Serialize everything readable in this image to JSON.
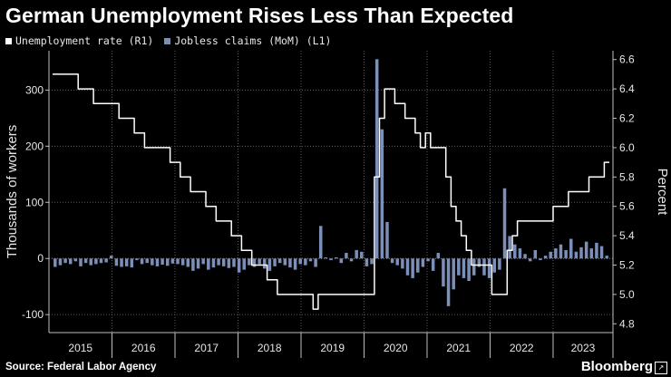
{
  "title": "German Unemployment Rises Less Than Expected",
  "legend": [
    {
      "label": "Unemployment rate (R1)",
      "color": "#ffffff"
    },
    {
      "label": "Jobless claims (MoM) (L1)",
      "color": "#7b8fb8"
    }
  ],
  "source": "Source: Federal Labor Agency",
  "brand": "Bloomberg",
  "brand_icon": "bloomberg-logo-icon",
  "chart_data": {
    "type": "bar+line",
    "ylabel_left": "Thousands of workers",
    "ylabel_right": "Percent",
    "left_ticks": [
      -100,
      0,
      100,
      200,
      300
    ],
    "left_ylim": [
      -132,
      370
    ],
    "right_ticks": [
      4.8,
      5.0,
      5.2,
      5.4,
      5.6,
      5.8,
      6.0,
      6.2,
      6.4,
      6.6
    ],
    "right_ylim": [
      4.74,
      6.66
    ],
    "years": [
      "2015",
      "2016",
      "2017",
      "2018",
      "2019",
      "2020",
      "2021",
      "2022",
      "2023"
    ],
    "x_start": 2015.0,
    "x_end": 2023.95,
    "series": [
      {
        "name": "Jobless claims (MoM)",
        "axis": "left",
        "kind": "bar",
        "color": "#7b8fb8",
        "values": [
          -15,
          -12,
          -8,
          -10,
          -5,
          -14,
          -8,
          -12,
          -10,
          -8,
          -7,
          5,
          -13,
          -15,
          -14,
          -16,
          -3,
          -10,
          -8,
          -12,
          -14,
          -11,
          -13,
          -9,
          -10,
          -12,
          -15,
          -22,
          -18,
          -10,
          -20,
          -16,
          -12,
          -14,
          -17,
          -15,
          -25,
          -20,
          -12,
          -15,
          -10,
          -18,
          -22,
          -14,
          -8,
          -12,
          -16,
          -20,
          -10,
          -12,
          -5,
          -15,
          58,
          2,
          -3,
          2,
          -8,
          10,
          -5,
          15,
          12,
          -14,
          -10,
          355,
          230,
          65,
          -8,
          -12,
          -18,
          -30,
          -35,
          -25,
          -15,
          -5,
          -22,
          10,
          -50,
          -85,
          -55,
          -30,
          -35,
          -40,
          -30,
          -15,
          -30,
          -35,
          -25,
          -20,
          125,
          40,
          25,
          18,
          8,
          -5,
          15,
          -3,
          5,
          12,
          18,
          25,
          15,
          35,
          12,
          20,
          30,
          18,
          28,
          22,
          5
        ]
      },
      {
        "name": "Unemployment rate",
        "axis": "right",
        "kind": "line",
        "color": "#ffffff",
        "values": [
          6.5,
          6.5,
          6.5,
          6.5,
          6.5,
          6.4,
          6.4,
          6.4,
          6.3,
          6.3,
          6.3,
          6.3,
          6.3,
          6.2,
          6.2,
          6.2,
          6.1,
          6.1,
          6.0,
          6.0,
          6.0,
          6.0,
          6.0,
          5.9,
          5.9,
          5.8,
          5.8,
          5.7,
          5.7,
          5.7,
          5.6,
          5.6,
          5.5,
          5.5,
          5.5,
          5.4,
          5.4,
          5.3,
          5.3,
          5.2,
          5.2,
          5.2,
          5.1,
          5.1,
          5.0,
          5.0,
          5.0,
          5.0,
          5.0,
          5.0,
          5.0,
          4.9,
          5.0,
          5.0,
          5.0,
          5.0,
          5.0,
          5.0,
          5.0,
          5.0,
          5.0,
          5.0,
          5.0,
          5.8,
          6.2,
          6.4,
          6.4,
          6.3,
          6.3,
          6.2,
          6.2,
          6.1,
          6.0,
          6.1,
          6.0,
          6.0,
          6.0,
          5.8,
          5.6,
          5.5,
          5.4,
          5.3,
          5.2,
          5.2,
          5.2,
          5.2,
          5.0,
          5.0,
          5.0,
          5.3,
          5.4,
          5.5,
          5.5,
          5.5,
          5.5,
          5.5,
          5.5,
          5.5,
          5.6,
          5.6,
          5.6,
          5.7,
          5.7,
          5.7,
          5.7,
          5.8,
          5.8,
          5.8,
          5.9
        ]
      }
    ]
  }
}
